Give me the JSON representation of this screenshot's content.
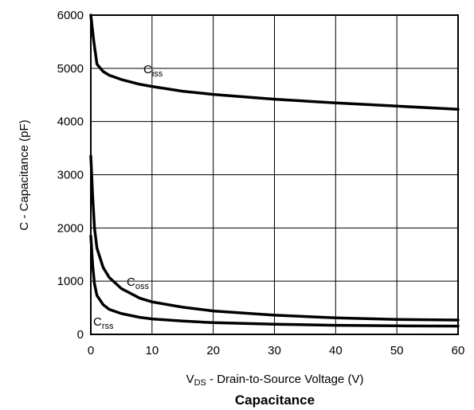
{
  "chart_data": {
    "type": "line",
    "title": "Capacitance",
    "xlabel": {
      "main": "V",
      "sub": "DS",
      "rest": " - Drain-to-Source Voltage (V)"
    },
    "ylabel": "C - Capacitance (pF)",
    "xlim": [
      0,
      60
    ],
    "ylim": [
      0,
      6000
    ],
    "xticks": [
      0,
      10,
      20,
      30,
      40,
      50,
      60
    ],
    "yticks": [
      0,
      1000,
      2000,
      3000,
      4000,
      5000,
      6000
    ],
    "grid": true,
    "legend": "none",
    "series": [
      {
        "name": "Ciss",
        "label": {
          "main": "C",
          "sub": "iss"
        },
        "x": [
          0,
          0.5,
          1,
          2,
          3,
          5,
          8,
          10,
          15,
          20,
          30,
          40,
          50,
          60
        ],
        "y": [
          6000,
          5500,
          5080,
          4940,
          4870,
          4790,
          4700,
          4660,
          4570,
          4510,
          4420,
          4350,
          4290,
          4230
        ]
      },
      {
        "name": "Coss",
        "label": {
          "main": "C",
          "sub": "oss"
        },
        "x": [
          0,
          0.3,
          0.6,
          1,
          2,
          3,
          5,
          8,
          10,
          15,
          20,
          30,
          40,
          50,
          60
        ],
        "y": [
          3350,
          2600,
          2000,
          1620,
          1260,
          1070,
          860,
          680,
          610,
          510,
          440,
          360,
          310,
          280,
          270
        ]
      },
      {
        "name": "Crss",
        "label": {
          "main": "C",
          "sub": "rss"
        },
        "x": [
          0,
          0.3,
          0.6,
          1,
          2,
          3,
          5,
          8,
          10,
          15,
          20,
          30,
          40,
          50,
          60
        ],
        "y": [
          1850,
          1300,
          950,
          730,
          560,
          470,
          390,
          320,
          290,
          250,
          220,
          190,
          170,
          160,
          155
        ]
      }
    ]
  }
}
